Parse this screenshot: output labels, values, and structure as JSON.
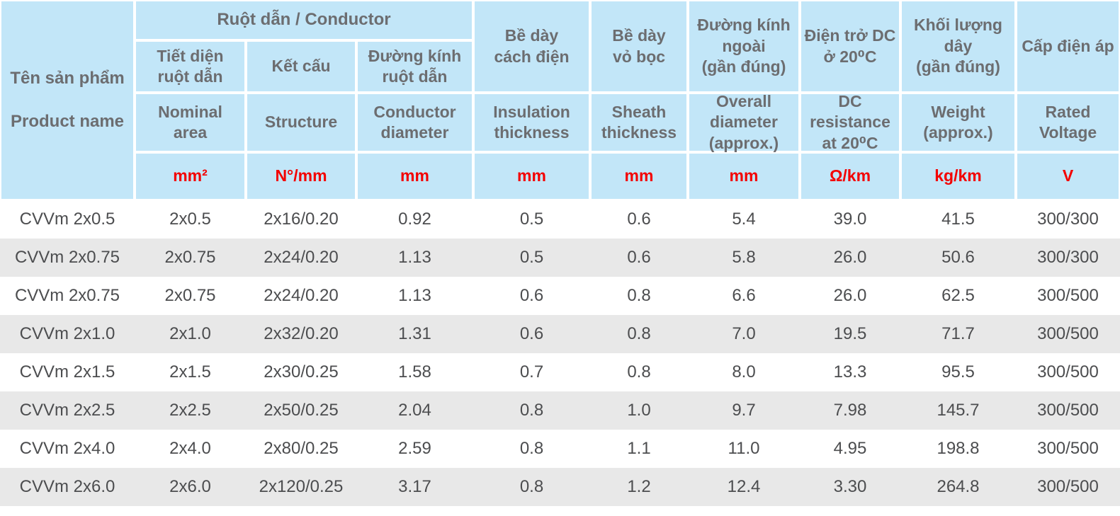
{
  "header": {
    "product_name": {
      "vi": "Tên sản phẩm",
      "en": "Product name"
    },
    "conductor_group": "Ruột dẫn / Conductor",
    "columns": [
      {
        "vi": "Tiết diện\nruột dẫn",
        "en": "Nominal\narea",
        "unit": "mm²"
      },
      {
        "vi": "Kết cấu",
        "en": "Structure",
        "unit": "N°/mm"
      },
      {
        "vi": "Đường kính\nruột dẫn",
        "en": "Conductor\ndiameter",
        "unit": "mm"
      },
      {
        "vi": "Bề dày\ncách điện",
        "en": "Insulation\nthickness",
        "unit": "mm"
      },
      {
        "vi": "Bề dày\nvỏ bọc",
        "en": "Sheath\nthickness",
        "unit": "mm"
      },
      {
        "vi": "Đường kính\nngoài\n(gần đúng)",
        "en": "Overall\ndiameter\n(approx.)",
        "unit": "mm"
      },
      {
        "vi": "Điện trở DC\nở 20⁰C",
        "en": "DC\nresistance\nat 20⁰C",
        "unit": "Ω/km"
      },
      {
        "vi": "Khối lượng\ndây\n(gần đúng)",
        "en": "Weight\n(approx.)",
        "unit": "kg/km"
      },
      {
        "vi": "Cấp điện áp",
        "en": "Rated\nVoltage",
        "unit": "V"
      }
    ]
  },
  "rows": [
    [
      "CVVm 2x0.5",
      "2x0.5",
      "2x16/0.20",
      "0.92",
      "0.5",
      "0.6",
      "5.4",
      "39.0",
      "41.5",
      "300/300"
    ],
    [
      "CVVm 2x0.75",
      "2x0.75",
      "2x24/0.20",
      "1.13",
      "0.5",
      "0.6",
      "5.8",
      "26.0",
      "50.6",
      "300/300"
    ],
    [
      "CVVm 2x0.75",
      "2x0.75",
      "2x24/0.20",
      "1.13",
      "0.6",
      "0.8",
      "6.6",
      "26.0",
      "62.5",
      "300/500"
    ],
    [
      "CVVm 2x1.0",
      "2x1.0",
      "2x32/0.20",
      "1.31",
      "0.6",
      "0.8",
      "7.0",
      "19.5",
      "71.7",
      "300/500"
    ],
    [
      "CVVm 2x1.5",
      "2x1.5",
      "2x30/0.25",
      "1.58",
      "0.7",
      "0.8",
      "8.0",
      "13.3",
      "95.5",
      "300/500"
    ],
    [
      "CVVm 2x2.5",
      "2x2.5",
      "2x50/0.25",
      "2.04",
      "0.8",
      "1.0",
      "9.7",
      "7.98",
      "145.7",
      "300/500"
    ],
    [
      "CVVm 2x4.0",
      "2x4.0",
      "2x80/0.25",
      "2.59",
      "0.8",
      "1.1",
      "11.0",
      "4.95",
      "198.8",
      "300/500"
    ],
    [
      "CVVm 2x6.0",
      "2x6.0",
      "2x120/0.25",
      "3.17",
      "0.8",
      "1.2",
      "12.4",
      "3.30",
      "264.8",
      "300/500"
    ]
  ],
  "colors": {
    "header_bg": "#c2e6f8",
    "header_text": "#6c6d70",
    "unit_text": "#f30000",
    "data_text": "#4c4d4f",
    "alt_row_bg": "#e8e8e8",
    "grid_line": "#ffffff"
  }
}
